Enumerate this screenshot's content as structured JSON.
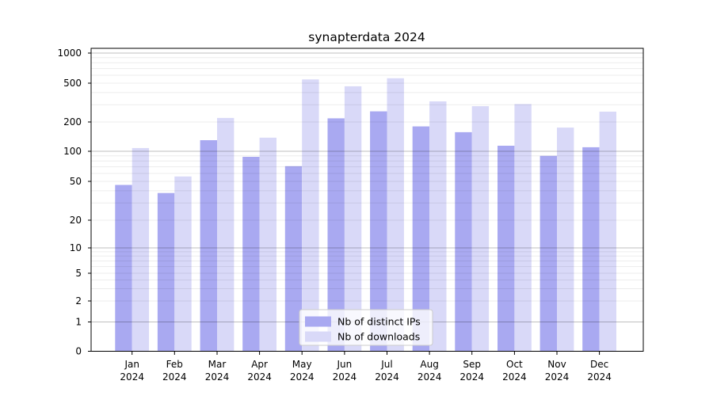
{
  "chart_data": {
    "type": "bar",
    "title": "synapterdata 2024",
    "scale": "symlog",
    "grid": "on",
    "legend_position": "lower center",
    "categories": [
      "Jan",
      "Feb",
      "Mar",
      "Apr",
      "May",
      "Jun",
      "Jul",
      "Aug",
      "Sep",
      "Oct",
      "Nov",
      "Dec"
    ],
    "year_label": "2024",
    "yticks": [
      0,
      1,
      2,
      5,
      10,
      20,
      50,
      100,
      200,
      500,
      1000
    ],
    "ylim": [
      0,
      1120
    ],
    "series": [
      {
        "name": "Nb of distinct IPs",
        "color": "#a9a9f1",
        "values": [
          46,
          38,
          130,
          88,
          71,
          218,
          257,
          180,
          157,
          114,
          90,
          110
        ]
      },
      {
        "name": "Nb of downloads",
        "color": "#d9d9f8",
        "values": [
          108,
          56,
          220,
          138,
          545,
          465,
          560,
          325,
          290,
          305,
          175,
          255
        ]
      }
    ]
  },
  "colors": {
    "spine": "#000000",
    "major_grid": "rgba(0,0,0,0.25)",
    "minor_grid": "rgba(0,0,0,0.075)",
    "legend_border": "#cccccc",
    "legend_fill": "rgba(255,255,255,0.8)"
  }
}
